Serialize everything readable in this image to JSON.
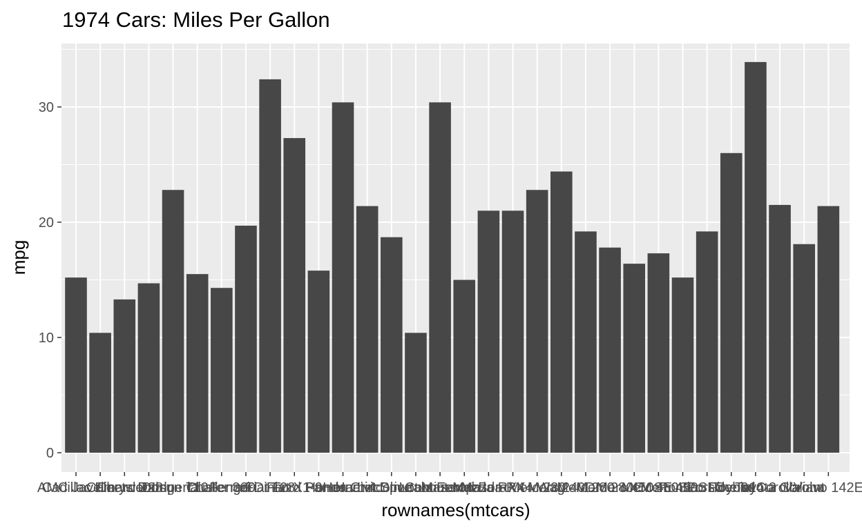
{
  "chart_data": {
    "type": "bar",
    "title": "1974 Cars: Miles Per Gallon",
    "xlabel": "rownames(mtcars)",
    "ylabel": "mpg",
    "ylim": [
      0,
      35
    ],
    "yticks": [
      0,
      10,
      20,
      30
    ],
    "grid": true,
    "legend": "none",
    "categories": [
      "AMC Javelin",
      "Cadillac Fleetwood",
      "Camaro Z28",
      "Chrysler Imperial",
      "Datsun 710",
      "Dodge Challenger",
      "Duster 360",
      "Ferrari Dino",
      "Fiat 128",
      "Fiat X1-9",
      "Ford Pantera L",
      "Honda Civic",
      "Hornet 4 Drive",
      "Hornet Sportabout",
      "Lincoln Continental",
      "Lotus Europa",
      "Maserati Bora",
      "Mazda RX4",
      "Mazda RX4 Wag",
      "Merc 230",
      "Merc 240D",
      "Merc 280",
      "Merc 280C",
      "Merc 450SE",
      "Merc 450SL",
      "Merc 450SLC",
      "Pontiac Firebird",
      "Porsche 914-2",
      "Toyota Corolla",
      "Toyota Corona",
      "Valiant",
      "Volvo 142E"
    ],
    "values": [
      15.2,
      10.4,
      13.3,
      14.7,
      22.8,
      15.5,
      14.3,
      19.7,
      32.4,
      27.3,
      15.8,
      30.4,
      21.4,
      18.7,
      10.4,
      30.4,
      15.0,
      21.0,
      21.0,
      22.8,
      24.4,
      19.2,
      17.8,
      16.4,
      17.3,
      15.2,
      19.2,
      26.0,
      33.9,
      21.5,
      18.1,
      21.4
    ],
    "colors": {
      "panel": "#ebebeb",
      "grid_major": "#ffffff",
      "bar": "#474747",
      "tick": "#333333",
      "tick_label": "#4d4d4d"
    }
  }
}
